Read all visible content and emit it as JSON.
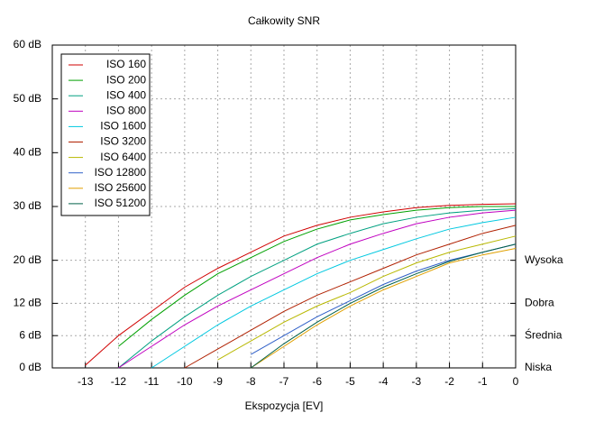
{
  "chart_data": {
    "type": "line",
    "title": "Całkowity SNR",
    "x_label": "Ekspozycja [EV]",
    "x": [
      -13,
      -12,
      -11,
      -10,
      -9,
      -8,
      -7,
      -6,
      -5,
      -4,
      -3,
      -2,
      -1,
      0
    ],
    "xlim": [
      -14,
      0
    ],
    "xticks": [
      -13,
      -12,
      -11,
      -10,
      -9,
      -8,
      -7,
      -6,
      -5,
      -4,
      -3,
      -2,
      -1,
      0
    ],
    "ylim": [
      0,
      60
    ],
    "yticks": [
      {
        "value": 0,
        "label": "0 dB"
      },
      {
        "value": 6,
        "label": "6 dB"
      },
      {
        "value": 12,
        "label": "12 dB"
      },
      {
        "value": 20,
        "label": "20 dB"
      },
      {
        "value": 30,
        "label": "30 dB"
      },
      {
        "value": 40,
        "label": "40 dB"
      },
      {
        "value": 50,
        "label": "50 dB"
      },
      {
        "value": 60,
        "label": "60 dB"
      }
    ],
    "y2lim": [
      0,
      60
    ],
    "y2ticks": [
      {
        "value": 0,
        "label": "Niska"
      },
      {
        "value": 6,
        "label": "Średnia"
      },
      {
        "value": 12,
        "label": "Dobra"
      },
      {
        "value": 20,
        "label": "Wysoka"
      }
    ],
    "grid": true,
    "legend": "top-left",
    "series": [
      {
        "name": "ISO 160",
        "color": "#d00000",
        "values": [
          0.5,
          6,
          10.5,
          15,
          18.5,
          21.5,
          24.5,
          26.5,
          28,
          29,
          29.8,
          30.2,
          30.4,
          30.5
        ]
      },
      {
        "name": "ISO 200",
        "color": "#00a000",
        "values": [
          null,
          4,
          9,
          13.5,
          17.5,
          20.5,
          23.5,
          25.8,
          27.5,
          28.5,
          29.3,
          29.8,
          30,
          30
        ]
      },
      {
        "name": "ISO 400",
        "color": "#00a080",
        "values": [
          null,
          0,
          5,
          9.5,
          13.5,
          17,
          20,
          23,
          25,
          26.8,
          28,
          28.8,
          29.3,
          29.6
        ]
      },
      {
        "name": "ISO 800",
        "color": "#c000c0",
        "values": [
          null,
          0,
          4,
          8,
          11.5,
          14.5,
          17.5,
          20.5,
          23,
          25,
          26.8,
          28,
          28.8,
          29.3
        ]
      },
      {
        "name": "ISO 1600",
        "color": "#00c8e0",
        "values": [
          null,
          null,
          0,
          4,
          8,
          11.5,
          14.5,
          17.5,
          20,
          22,
          24,
          25.8,
          27,
          28
        ]
      },
      {
        "name": "ISO 3200",
        "color": "#b02000",
        "values": [
          null,
          null,
          null,
          0,
          3.5,
          7,
          10.5,
          13.5,
          16,
          18.5,
          21,
          23,
          25,
          26.5
        ]
      },
      {
        "name": "ISO 6400",
        "color": "#b8b800",
        "values": [
          null,
          null,
          null,
          null,
          1.5,
          5,
          8.5,
          11.5,
          14,
          17,
          19.5,
          21.5,
          23,
          24.5
        ]
      },
      {
        "name": "ISO 12800",
        "color": "#3060c8",
        "values": [
          null,
          null,
          null,
          null,
          null,
          2.5,
          6,
          9.5,
          12.5,
          15.5,
          18,
          20,
          21.5,
          23
        ]
      },
      {
        "name": "ISO 25600",
        "color": "#e0a000",
        "values": [
          null,
          null,
          null,
          null,
          null,
          0,
          4,
          8,
          11.5,
          14.5,
          17,
          19.5,
          21,
          22.2
        ]
      },
      {
        "name": "ISO 51200",
        "color": "#006048",
        "values": [
          null,
          null,
          null,
          null,
          null,
          0,
          4.5,
          8.5,
          12,
          15,
          17.5,
          19.8,
          21.5,
          23
        ]
      }
    ]
  }
}
